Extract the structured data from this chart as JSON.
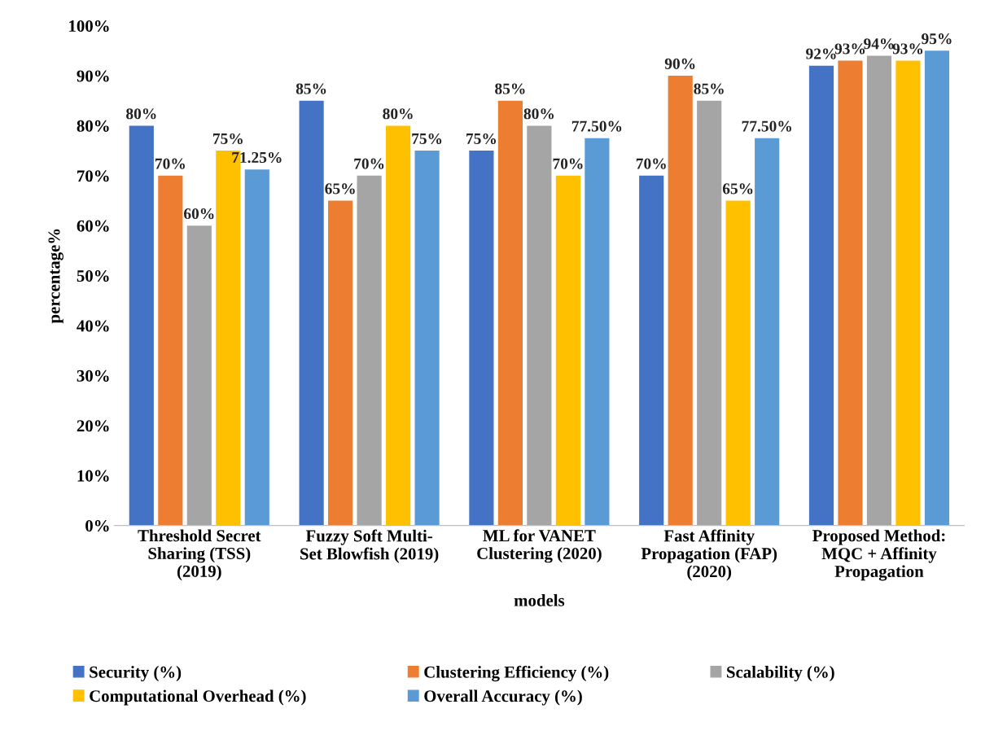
{
  "chart_data": {
    "type": "bar",
    "xlabel": "models",
    "ylabel": "percentage%",
    "categories": [
      "Threshold Secret\nSharing (TSS)\n(2019)",
      "Fuzzy Soft Multi-\nSet Blowfish (2019)",
      "ML for VANET\nClustering (2020)",
      "Fast Affinity\nPropagation (FAP)\n(2020)",
      "Proposed Method:\nMQC + Affinity\nPropagation"
    ],
    "series": [
      {
        "name": "Security (%)",
        "color": "#4472c4",
        "values": [
          80,
          85,
          75,
          70,
          92
        ],
        "value_labels": [
          "80%",
          "85%",
          "75%",
          "70%",
          "92%"
        ]
      },
      {
        "name": "Clustering Efficiency (%)",
        "color": "#ed7d31",
        "values": [
          70,
          65,
          85,
          90,
          93
        ],
        "value_labels": [
          "70%",
          "65%",
          "85%",
          "90%",
          "93%"
        ]
      },
      {
        "name": "Scalability (%)",
        "color": "#a5a5a5",
        "values": [
          60,
          70,
          80,
          85,
          94
        ],
        "value_labels": [
          "60%",
          "70%",
          "80%",
          "85%",
          "94%"
        ]
      },
      {
        "name": "Computational Overhead (%)",
        "color": "#ffc000",
        "values": [
          75,
          80,
          70,
          65,
          93
        ],
        "value_labels": [
          "75%",
          "80%",
          "70%",
          "65%",
          "93%"
        ]
      },
      {
        "name": "Overall Accuracy (%)",
        "color": "#5b9bd5",
        "values": [
          71.25,
          75,
          77.5,
          77.5,
          95
        ],
        "value_labels": [
          "71.25%",
          "75%",
          "77.50%",
          "77.50%",
          "95%"
        ]
      }
    ],
    "ylim": [
      0,
      100
    ],
    "yticks": [
      {
        "value": 0,
        "label": "0%"
      },
      {
        "value": 10,
        "label": "10%"
      },
      {
        "value": 20,
        "label": "20%"
      },
      {
        "value": 30,
        "label": "30%"
      },
      {
        "value": 40,
        "label": "40%"
      },
      {
        "value": 50,
        "label": "50%"
      },
      {
        "value": 60,
        "label": "60%"
      },
      {
        "value": 70,
        "label": "70%"
      },
      {
        "value": 80,
        "label": "80%"
      },
      {
        "value": 90,
        "label": "90%"
      },
      {
        "value": 100,
        "label": "100%"
      }
    ],
    "grid": false,
    "legend": "bottom"
  }
}
